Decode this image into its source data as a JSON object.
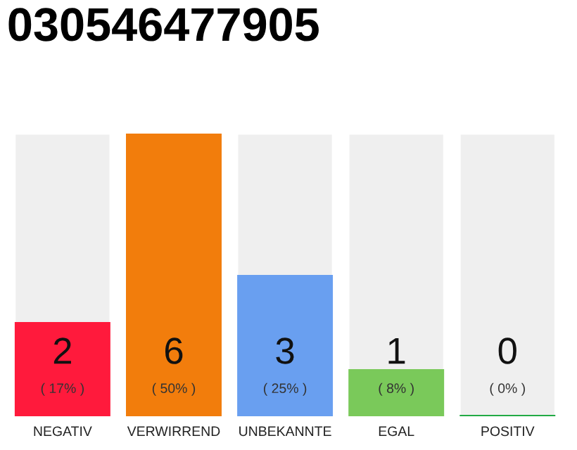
{
  "chart_data": {
    "type": "bar",
    "title": "030546477905",
    "categories": [
      "NEGATIV",
      "VERWIRREND",
      "UNBEKANNTE",
      "EGAL",
      "POSITIV"
    ],
    "values": [
      2,
      6,
      3,
      1,
      0
    ],
    "colors": [
      "#ff1a3c",
      "#f27d0c",
      "#699ff0",
      "#7ac95a",
      "#22aa44"
    ],
    "value_labels": [
      "2\n( 17% )",
      "6\n( 50% )",
      "3\n( 25% )",
      "1\n( 8% )",
      "0\n( 0% )"
    ],
    "ylim": [
      0,
      6
    ],
    "tick_labels": "x",
    "legend": false
  }
}
